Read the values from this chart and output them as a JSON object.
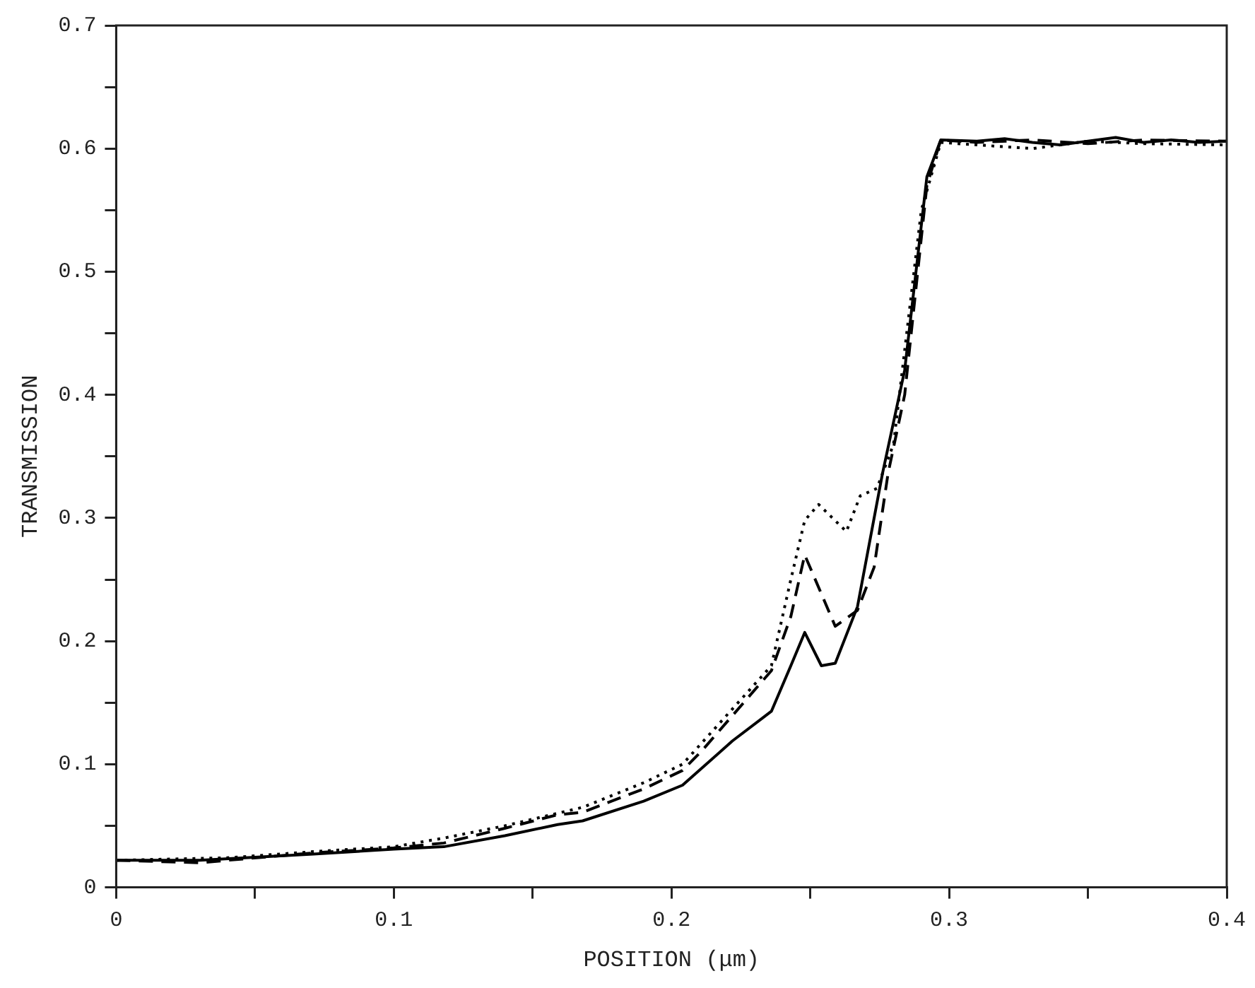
{
  "chart_data": {
    "type": "line",
    "xlabel": "POSITION (μm)",
    "ylabel": "TRANSMISSION",
    "marker": "none",
    "grid": false,
    "legend": false,
    "xlim": [
      0,
      0.4
    ],
    "xticks": [
      0,
      {
        "value": 0.05,
        "label": null
      },
      0.1,
      {
        "value": 0.15,
        "label": null
      },
      0.2,
      {
        "value": 0.25,
        "label": null
      },
      0.3,
      {
        "value": 0.35,
        "label": null
      },
      0.4
    ],
    "ylim": [
      0,
      0.7
    ],
    "yticks": [
      0,
      {
        "value": 0.05,
        "label": null
      },
      0.1,
      {
        "value": 0.15,
        "label": null
      },
      0.2,
      {
        "value": 0.25,
        "label": null
      },
      0.3,
      {
        "value": 0.35,
        "label": null
      },
      0.4,
      {
        "value": 0.45,
        "label": null
      },
      0.5,
      {
        "value": 0.55,
        "label": null
      },
      0.6,
      {
        "value": 0.65,
        "label": null
      },
      0.7
    ],
    "series": [
      {
        "color": "#000000",
        "line_style": "solid",
        "x": [
          0,
          0.03,
          0.071,
          0.1,
          0.118,
          0.14,
          0.159,
          0.168,
          0.19,
          0.204,
          0.222,
          0.236,
          0.243,
          0.248,
          0.254,
          0.259,
          0.267,
          0.276,
          0.284,
          0.292,
          0.297,
          0.31,
          0.32,
          0.33,
          0.34,
          0.35,
          0.36,
          0.37,
          0.38,
          0.39,
          0.4
        ],
        "values": [
          0.022,
          0.022,
          0.027,
          0.031,
          0.033,
          0.042,
          0.051,
          0.054,
          0.07,
          0.083,
          0.119,
          0.143,
          0.18,
          0.207,
          0.18,
          0.182,
          0.228,
          0.336,
          0.42,
          0.577,
          0.607,
          0.606,
          0.608,
          0.605,
          0.603,
          0.606,
          0.609,
          0.605,
          0.607,
          0.605,
          0.606
        ]
      },
      {
        "color": "#000000",
        "line_style": "dashed",
        "x": [
          0,
          0.03,
          0.071,
          0.1,
          0.118,
          0.14,
          0.159,
          0.168,
          0.19,
          0.204,
          0.211,
          0.236,
          0.243,
          0.248,
          0.259,
          0.267,
          0.273,
          0.278,
          0.284,
          0.292,
          0.297,
          0.31,
          0.33,
          0.35,
          0.37,
          0.4
        ],
        "values": [
          0.022,
          0.02,
          0.028,
          0.032,
          0.036,
          0.048,
          0.059,
          0.061,
          0.08,
          0.095,
          0.111,
          0.176,
          0.22,
          0.27,
          0.212,
          0.225,
          0.26,
          0.336,
          0.4,
          0.57,
          0.607,
          0.605,
          0.607,
          0.604,
          0.607,
          0.606
        ]
      },
      {
        "color": "#000000",
        "line_style": "dotted",
        "x": [
          0,
          0.04,
          0.071,
          0.1,
          0.118,
          0.14,
          0.168,
          0.19,
          0.204,
          0.236,
          0.243,
          0.248,
          0.253,
          0.263,
          0.268,
          0.274,
          0.28,
          0.29,
          0.297,
          0.31,
          0.33,
          0.35,
          0.37,
          0.4
        ],
        "values": [
          0.022,
          0.024,
          0.029,
          0.033,
          0.04,
          0.05,
          0.065,
          0.085,
          0.1,
          0.18,
          0.25,
          0.298,
          0.311,
          0.289,
          0.318,
          0.324,
          0.36,
          0.55,
          0.605,
          0.603,
          0.6,
          0.606,
          0.604,
          0.603
        ]
      }
    ]
  }
}
